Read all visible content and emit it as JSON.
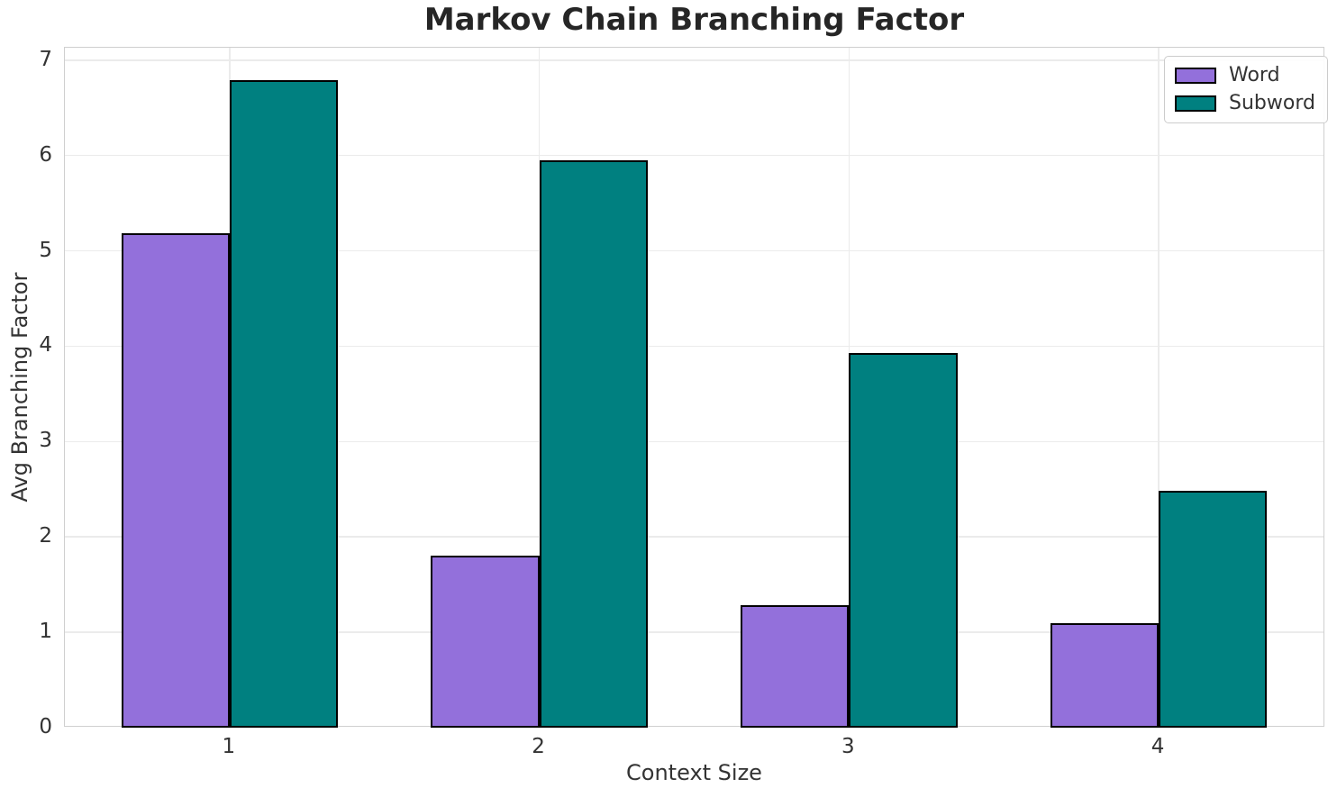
{
  "chart_data": {
    "type": "bar",
    "title": "Markov Chain Branching Factor",
    "xlabel": "Context Size",
    "ylabel": "Avg Branching Factor",
    "categories": [
      "1",
      "2",
      "3",
      "4"
    ],
    "x": [
      1,
      2,
      3,
      4
    ],
    "series": [
      {
        "name": "Word",
        "color": "#9370DB",
        "values": [
          5.18,
          1.8,
          1.28,
          1.1
        ]
      },
      {
        "name": "Subword",
        "color": "#008080",
        "values": [
          6.79,
          5.95,
          3.93,
          2.48
        ]
      }
    ],
    "bar_width": 0.35,
    "edge_color": "#000000",
    "ylim": [
      0,
      7.13
    ],
    "xlim": [
      0.468,
      4.538
    ],
    "yticks": [
      "0",
      "1",
      "2",
      "3",
      "4",
      "5",
      "6",
      "7"
    ],
    "grid": true,
    "legend_position": "upper right",
    "colors": {
      "grid": "#ebebeb",
      "spine": "#cfcfcf",
      "tick_text": "#333333",
      "title_text": "#262626",
      "background": "#ffffff"
    }
  }
}
